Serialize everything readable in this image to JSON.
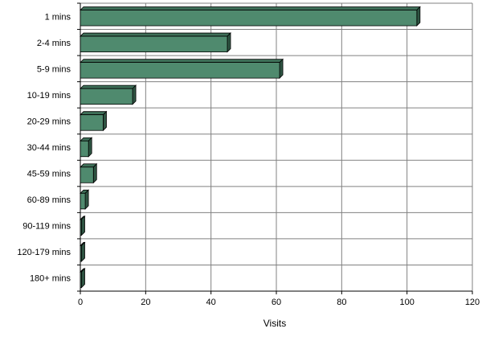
{
  "chart_data": {
    "type": "bar",
    "orientation": "horizontal",
    "categories": [
      "1 mins",
      "2-4 mins",
      "5-9 mins",
      "10-19 mins",
      "20-29 mins",
      "30-44 mins",
      "45-59 mins",
      "60-89 mins",
      "90-119 mins",
      "120-179 mins",
      "180+ mins"
    ],
    "values": [
      103,
      45,
      61,
      16,
      7,
      2.5,
      4,
      1.5,
      0.2,
      0.2,
      0.2
    ],
    "xlabel": "Visits",
    "ylabel": "",
    "xlim": [
      0,
      120
    ],
    "xticks": [
      "0",
      "20",
      "40",
      "60",
      "80",
      "100",
      "120"
    ],
    "grid": true,
    "colors": {
      "bar_front": "#4f8a6e",
      "bar_top": "#3e6f58",
      "bar_side": "#2e5442",
      "grid": "#808080",
      "plot_bg": "#ffffff"
    }
  }
}
